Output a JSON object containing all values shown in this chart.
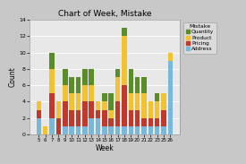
{
  "title": "Chart of Week, Mistake",
  "xlabel": "Week",
  "ylabel": "Count",
  "ylim": [
    0,
    14
  ],
  "yticks": [
    0,
    2,
    4,
    6,
    8,
    10,
    12,
    14
  ],
  "weeks": [
    5,
    6,
    7,
    8,
    9,
    10,
    11,
    12,
    13,
    14,
    15,
    16,
    17,
    18,
    19,
    20,
    21,
    22,
    23,
    25,
    26
  ],
  "Address": [
    2,
    0,
    2,
    0,
    1,
    1,
    1,
    1,
    2,
    2,
    1,
    1,
    1,
    1,
    1,
    1,
    1,
    1,
    1,
    1,
    9
  ],
  "Pricing": [
    1,
    0,
    3,
    2,
    3,
    2,
    2,
    3,
    2,
    1,
    2,
    1,
    3,
    5,
    2,
    2,
    1,
    1,
    1,
    2,
    0
  ],
  "Product": [
    1,
    1,
    3,
    2,
    2,
    2,
    2,
    2,
    2,
    1,
    1,
    1,
    3,
    6,
    2,
    2,
    3,
    2,
    2,
    2,
    1
  ],
  "Quantity": [
    0,
    0,
    2,
    0,
    2,
    2,
    2,
    2,
    2,
    0,
    1,
    2,
    1,
    1,
    3,
    2,
    2,
    0,
    1,
    0,
    0
  ],
  "colors": {
    "Address": "#7ab8d9",
    "Pricing": "#c0392b",
    "Product": "#f1c232",
    "Quantity": "#5b8c2a"
  },
  "legend_title": "Mistake",
  "background_color": "#c8c8c8",
  "plot_bg_color": "#e8e8e8"
}
